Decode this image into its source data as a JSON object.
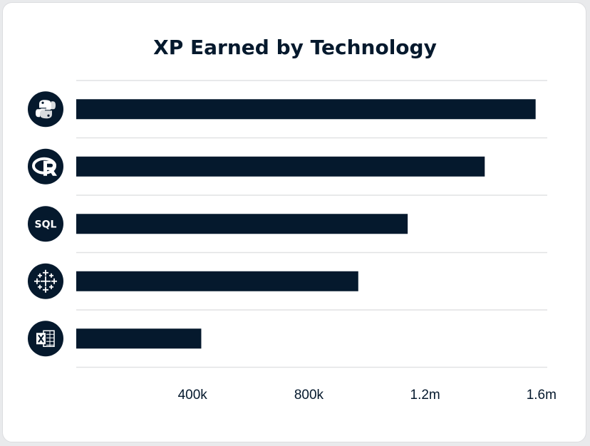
{
  "chart_data": {
    "type": "bar",
    "orientation": "horizontal",
    "title": "XP Earned by Technology",
    "categories": [
      "Python",
      "R",
      "SQL",
      "Tableau",
      "Excel"
    ],
    "category_icons": [
      "python-icon",
      "r-icon",
      "sql-icon",
      "tableau-icon",
      "excel-icon"
    ],
    "icon_label_sql": "SQL",
    "values": [
      1580000,
      1405000,
      1140000,
      970000,
      430000
    ],
    "xlim": [
      0,
      1620000
    ],
    "xticks": [
      400000,
      800000,
      1200000,
      1600000
    ],
    "xtick_labels": [
      "400k",
      "800k",
      "1.2m",
      "1.6m"
    ],
    "grid": true,
    "legend": "none",
    "bar_color": "#05192d"
  }
}
